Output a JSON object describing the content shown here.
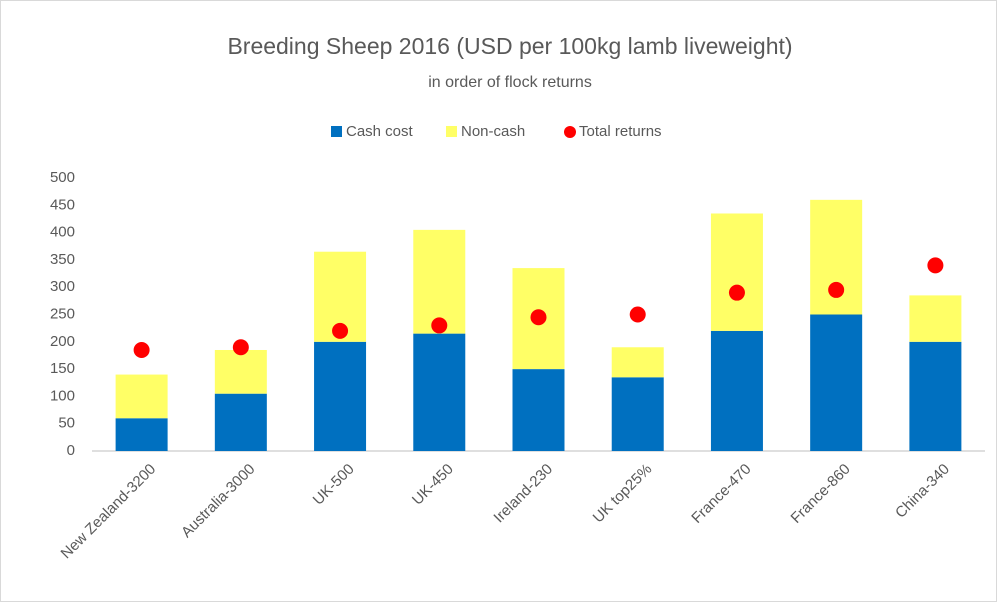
{
  "chart_data": {
    "type": "bar",
    "stacked": true,
    "title": "Breeding Sheep 2016 (USD per 100kg lamb liveweight)",
    "subtitle": "in order of flock returns",
    "categories": [
      "New Zealand-3200",
      "Australia-3000",
      "UK-500",
      "UK-450",
      "Ireland-230",
      "UK top25%",
      "France-470",
      "France-860",
      "China-340"
    ],
    "series": [
      {
        "name": "Cash cost",
        "type": "bar",
        "color": "#0070c0",
        "values": [
          60,
          105,
          200,
          215,
          150,
          135,
          220,
          250,
          200
        ]
      },
      {
        "name": "Non-cash",
        "type": "bar",
        "color": "#ffff66",
        "values": [
          80,
          80,
          165,
          190,
          185,
          55,
          215,
          210,
          85
        ]
      },
      {
        "name": "Total returns",
        "type": "scatter",
        "color": "#ff0000",
        "values": [
          185,
          190,
          220,
          230,
          245,
          250,
          290,
          295,
          340
        ]
      }
    ],
    "ylim": [
      0,
      500
    ],
    "yticks": [
      0,
      50,
      100,
      150,
      200,
      250,
      300,
      350,
      400,
      450,
      500
    ],
    "grid": false,
    "legend": "top"
  }
}
